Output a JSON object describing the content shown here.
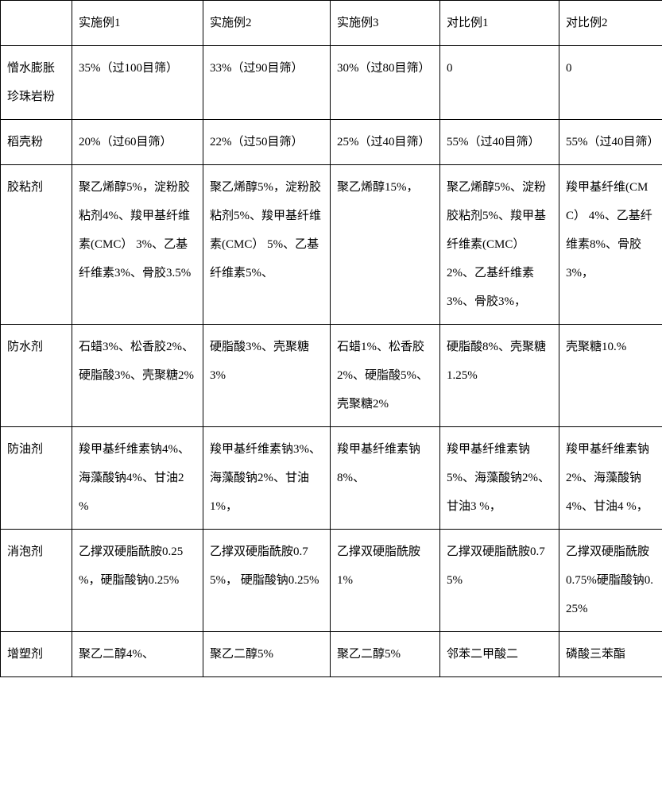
{
  "table": {
    "columns": [
      "",
      "实施例1",
      "实施例2",
      "实施例3",
      "对比例1",
      "对比例2"
    ],
    "rows": [
      {
        "label": "憎水膨胀珍珠岩粉",
        "cells": [
          "35%（过100目筛）",
          "33%（过90目筛）",
          "30%（过80目筛）",
          "0",
          "0"
        ]
      },
      {
        "label": "稻壳粉",
        "cells": [
          "20%（过60目筛）",
          "22%（过50目筛）",
          "25%（过40目筛）",
          "55%（过40目筛）",
          "55%（过40目筛）"
        ]
      },
      {
        "label": "胶粘剂",
        "cells": [
          "聚乙烯醇5%，淀粉胶粘剂4%、羧甲基纤维素(CMC） 3%、乙基纤维素3%、骨胶3.5%",
          "聚乙烯醇5%，淀粉胶粘剂5%、羧甲基纤维素(CMC） 5%、乙基纤维素5%、",
          "聚乙烯醇15%，",
          "聚乙烯醇5%、淀粉胶粘剂5%、羧甲基纤维素(CMC） 2%、乙基纤维素3%、骨胶3%，",
          "羧甲基纤维(CMC） 4%、乙基纤维素8%、骨胶3%，"
        ]
      },
      {
        "label": "防水剂",
        "cells": [
          "石蜡3%、松香胶2%、硬脂酸3%、壳聚糖2%",
          " 硬脂酸3%、壳聚糖3%",
          "石蜡1%、松香胶2%、硬脂酸5%、壳聚糖2%",
          " 硬脂酸8%、壳聚糖1.25%",
          "壳聚糖10.%"
        ]
      },
      {
        "label": "防油剂",
        "cells": [
          "羧甲基纤维素钠4%、海藻酸钠4%、甘油2 %",
          "羧甲基纤维素钠3%、海藻酸钠2%、甘油1%，",
          "羧甲基纤维素钠8%、",
          "羧甲基纤维素钠5%、海藻酸钠2%、甘油3 %，",
          "羧甲基纤维素钠2%、海藻酸钠4%、甘油4 %，"
        ]
      },
      {
        "label": "消泡剂",
        "cells": [
          "乙撑双硬脂酰胺0.25 %，硬脂酸钠0.25%",
          "乙撑双硬脂酰胺0.75%， 硬脂酸钠0.25%",
          "乙撑双硬脂酰胺1%",
          "乙撑双硬脂酰胺0.75%",
          "乙撑双硬脂酰胺0.75%硬脂酸钠0.25%"
        ]
      },
      {
        "label": "增塑剂",
        "cells": [
          "聚乙二醇4%、",
          "聚乙二醇5%",
          "聚乙二醇5%",
          "邻苯二甲酸二",
          "磷酸三苯酯"
        ]
      }
    ]
  }
}
